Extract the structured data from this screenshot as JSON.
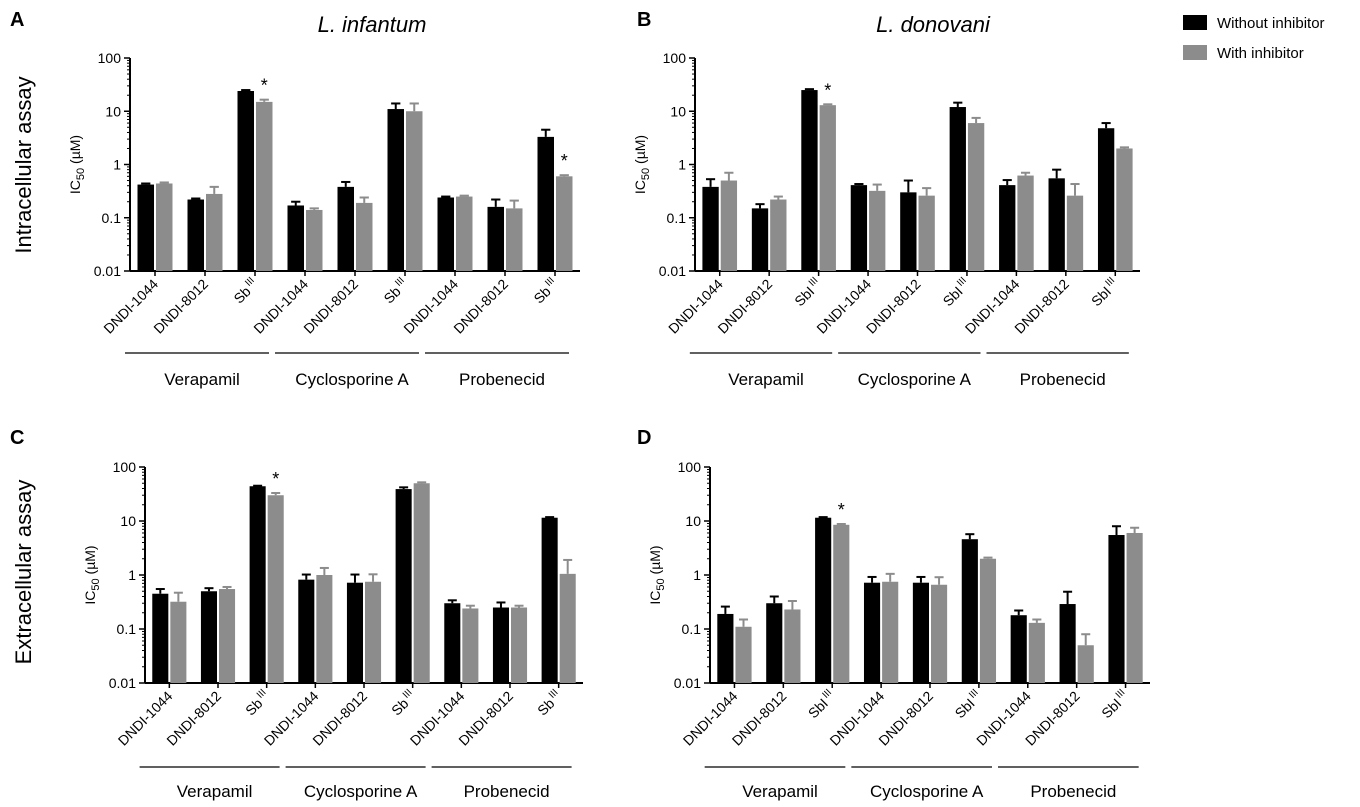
{
  "row_labels": [
    "Intracellular assay",
    "Extracellular assay"
  ],
  "legend": [
    {
      "label": "Without inhibitor",
      "color": "#000000"
    },
    {
      "label": "With inhibitor",
      "color": "#8c8c8c"
    }
  ],
  "chart_data": [
    {
      "panel": "A",
      "type": "bar",
      "title": "L. infantum",
      "ylabel": "IC50 (µM)",
      "yscale": "log",
      "ylim": [
        0.01,
        100
      ],
      "yticks": [
        "0.01",
        "0.1",
        "1",
        "10",
        "100"
      ],
      "categories": [
        "DNDI-1044",
        "DNDI-8012",
        "Sb III",
        "DNDI-1044",
        "DNDI-8012",
        "Sb III",
        "DNDI-1044",
        "DNDI-8012",
        "Sb III"
      ],
      "groups": [
        "Verapamil",
        "Cyclosporine A",
        "Probenecid"
      ],
      "series": [
        {
          "name": "Without inhibitor",
          "values": [
            0.42,
            0.22,
            24,
            0.17,
            0.38,
            11,
            0.24,
            0.16,
            3.3
          ],
          "errors": [
            0.02,
            0.01,
            1,
            0.03,
            0.09,
            3,
            0.01,
            0.06,
            1.2
          ]
        },
        {
          "name": "With inhibitor",
          "values": [
            0.44,
            0.28,
            15,
            0.14,
            0.19,
            10,
            0.25,
            0.15,
            0.6
          ],
          "errors": [
            0.02,
            0.1,
            1.5,
            0.01,
            0.05,
            4,
            0.01,
            0.06,
            0.03
          ]
        }
      ],
      "significant": [
        2,
        8
      ]
    },
    {
      "panel": "B",
      "type": "bar",
      "title": "L. donovani",
      "ylabel": "IC50 (µM)",
      "yscale": "log",
      "ylim": [
        0.01,
        100
      ],
      "yticks": [
        "0.01",
        "0.1",
        "1",
        "10",
        "100"
      ],
      "categories": [
        "DNDI-1044",
        "DNDI-8012",
        "SbI III",
        "DNDI-1044",
        "DNDI-8012",
        "SbI III",
        "DNDI-1044",
        "DNDI-8012",
        "SbI III"
      ],
      "groups": [
        "Verapamil",
        "Cyclosporine A",
        "Probenecid"
      ],
      "series": [
        {
          "name": "Without inhibitor",
          "values": [
            0.38,
            0.15,
            25,
            0.41,
            0.3,
            12,
            0.41,
            0.55,
            4.8
          ],
          "errors": [
            0.15,
            0.03,
            1,
            0.02,
            0.2,
            2.5,
            0.1,
            0.25,
            1.2
          ]
        },
        {
          "name": "With inhibitor",
          "values": [
            0.5,
            0.22,
            13,
            0.32,
            0.26,
            6,
            0.62,
            0.26,
            2.0
          ],
          "errors": [
            0.2,
            0.03,
            0.5,
            0.1,
            0.1,
            1.5,
            0.08,
            0.17,
            0.1
          ]
        }
      ],
      "significant": [
        2
      ]
    },
    {
      "panel": "C",
      "type": "bar",
      "title": "",
      "ylabel": "IC50 (µM)",
      "yscale": "log",
      "ylim": [
        0.01,
        100
      ],
      "yticks": [
        "0.01",
        "0.1",
        "1",
        "10",
        "100"
      ],
      "categories": [
        "DNDI-1044",
        "DNDI-8012",
        "Sb III",
        "DNDI-1044",
        "DNDI-8012",
        "Sb III",
        "DNDI-1044",
        "DNDI-8012",
        "Sb III"
      ],
      "groups": [
        "Verapamil",
        "Cyclosporine A",
        "Probenecid"
      ],
      "series": [
        {
          "name": "Without inhibitor",
          "values": [
            0.45,
            0.5,
            44,
            0.82,
            0.72,
            39,
            0.3,
            0.25,
            11.5
          ],
          "errors": [
            0.1,
            0.07,
            1,
            0.2,
            0.3,
            3,
            0.04,
            0.06,
            0.3
          ]
        },
        {
          "name": "With inhibitor",
          "values": [
            0.32,
            0.55,
            30,
            1.0,
            0.75,
            50,
            0.24,
            0.25,
            1.05
          ],
          "errors": [
            0.15,
            0.05,
            3,
            0.35,
            0.28,
            2,
            0.03,
            0.02,
            0.85
          ]
        }
      ],
      "significant": [
        2
      ]
    },
    {
      "panel": "D",
      "type": "bar",
      "title": "",
      "ylabel": "IC50 (µM)",
      "yscale": "log",
      "ylim": [
        0.01,
        100
      ],
      "yticks": [
        "0.01",
        "0.1",
        "1",
        "10",
        "100"
      ],
      "categories": [
        "DNDI-1044",
        "DNDI-8012",
        "SbI III",
        "DNDI-1044",
        "DNDI-8012",
        "SbI III",
        "DNDI-1044",
        "DNDI-8012",
        "SbI III"
      ],
      "groups": [
        "Verapamil",
        "Cyclosporine A",
        "Probenecid"
      ],
      "series": [
        {
          "name": "Without inhibitor",
          "values": [
            0.19,
            0.3,
            11.5,
            0.72,
            0.72,
            4.6,
            0.18,
            0.29,
            5.5
          ],
          "errors": [
            0.07,
            0.1,
            0.3,
            0.2,
            0.2,
            1.1,
            0.04,
            0.2,
            2.5
          ]
        },
        {
          "name": "With inhibitor",
          "values": [
            0.11,
            0.23,
            8.5,
            0.75,
            0.66,
            2.0,
            0.13,
            0.05,
            6.0
          ],
          "errors": [
            0.04,
            0.1,
            0.3,
            0.3,
            0.25,
            0.1,
            0.02,
            0.03,
            1.5
          ]
        }
      ],
      "significant": [
        2
      ]
    }
  ]
}
